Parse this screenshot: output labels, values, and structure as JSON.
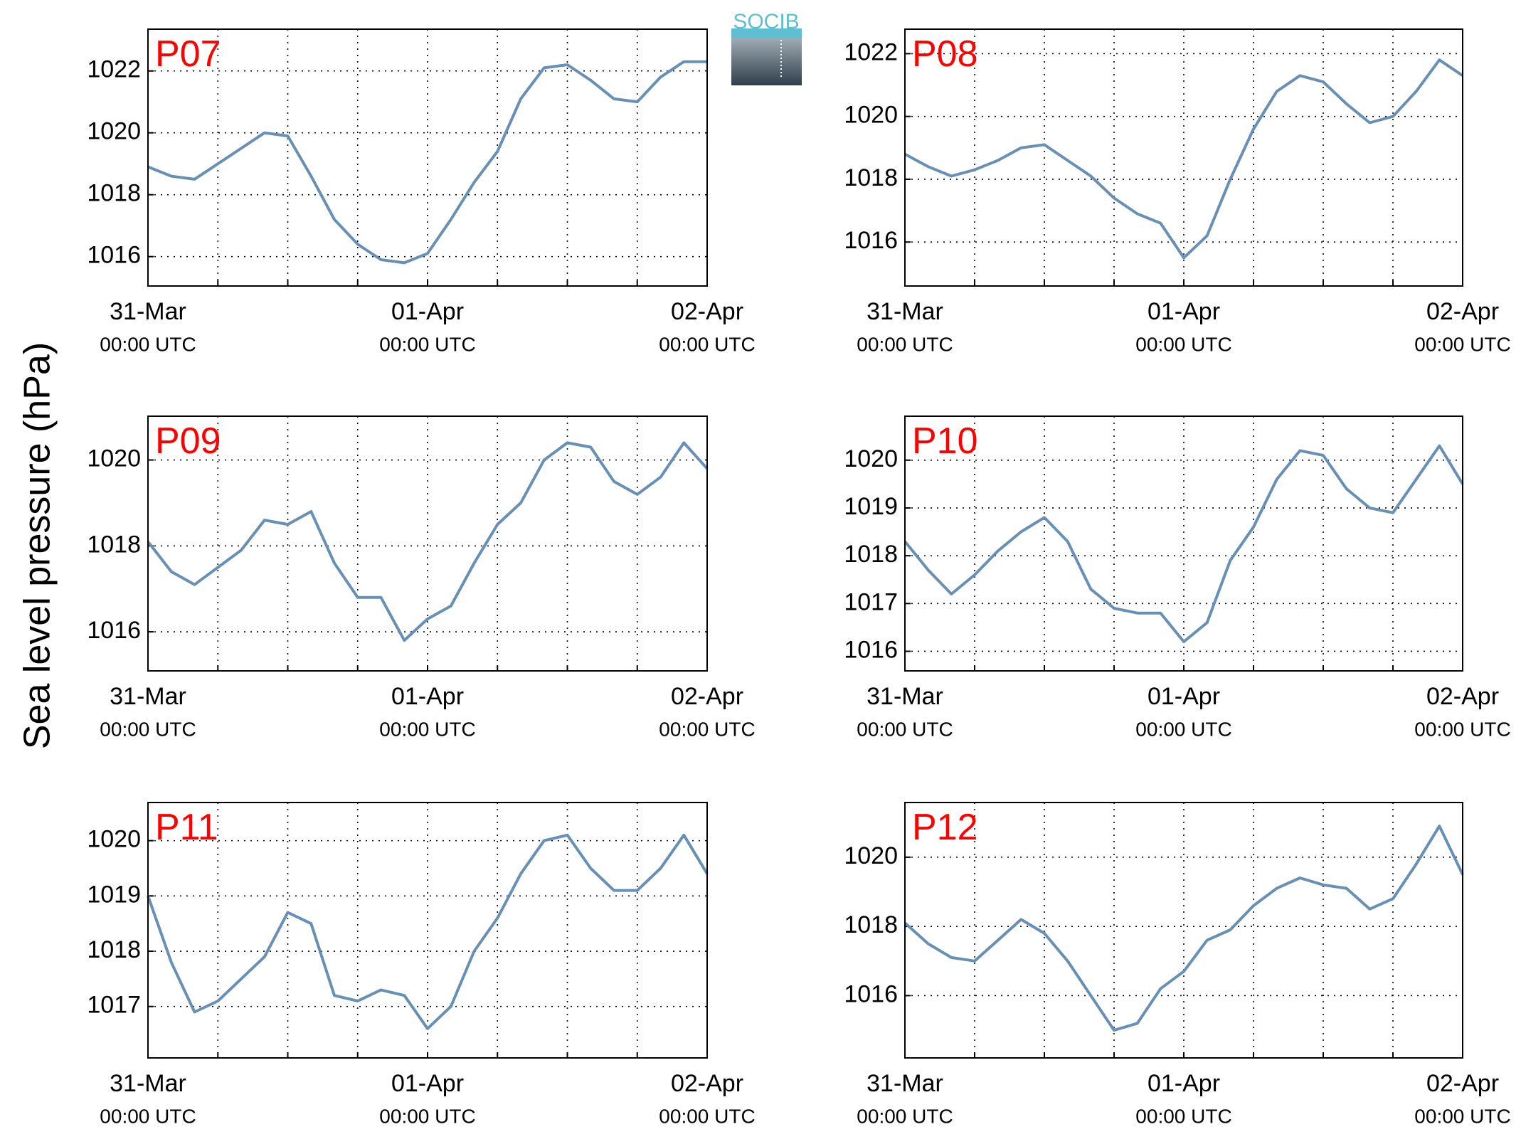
{
  "ylabel": "Sea level pressure (hPa)",
  "logo": "SOCIB",
  "chart_data": [
    {
      "type": "line",
      "title": "P07",
      "color": "#6890b5",
      "grid": true,
      "x": [
        0,
        2,
        4,
        6,
        8,
        10,
        12,
        14,
        16,
        18,
        20,
        22,
        24,
        26,
        28,
        30,
        32,
        34,
        36,
        38,
        40,
        42,
        44,
        46,
        48
      ],
      "values": [
        1018.9,
        1018.6,
        1018.5,
        1019.0,
        1019.5,
        1020.0,
        1019.9,
        1018.6,
        1017.2,
        1016.4,
        1015.9,
        1015.8,
        1016.1,
        1017.2,
        1018.4,
        1019.4,
        1021.1,
        1022.1,
        1022.2,
        1021.7,
        1021.1,
        1021.0,
        1021.8,
        1022.3,
        1022.3
      ],
      "xlim": [
        0,
        48
      ],
      "ylim": [
        1015.05,
        1023.35
      ],
      "yticks": [
        1016,
        1018,
        1020,
        1022
      ],
      "xticks": [
        {
          "value": 0,
          "label": [
            "31-Mar",
            "00:00 UTC"
          ]
        },
        {
          "value": 6,
          "label": null
        },
        {
          "value": 12,
          "label": null
        },
        {
          "value": 18,
          "label": null
        },
        {
          "value": 24,
          "label": [
            "01-Apr",
            "00:00 UTC"
          ]
        },
        {
          "value": 30,
          "label": null
        },
        {
          "value": 36,
          "label": null
        },
        {
          "value": 42,
          "label": null
        },
        {
          "value": 48,
          "label": [
            "02-Apr",
            "00:00 UTC"
          ]
        }
      ]
    },
    {
      "type": "line",
      "title": "P08",
      "color": "#6890b5",
      "grid": true,
      "x": [
        0,
        2,
        4,
        6,
        8,
        10,
        12,
        14,
        16,
        18,
        20,
        22,
        24,
        26,
        28,
        30,
        32,
        34,
        36,
        38,
        40,
        42,
        44,
        46,
        48
      ],
      "values": [
        1018.8,
        1018.4,
        1018.1,
        1018.3,
        1018.6,
        1019.0,
        1019.1,
        1018.6,
        1018.1,
        1017.4,
        1016.9,
        1016.6,
        1015.5,
        1016.2,
        1018.0,
        1019.6,
        1020.8,
        1021.3,
        1021.1,
        1020.4,
        1019.8,
        1020.0,
        1020.8,
        1021.8,
        1021.3
      ],
      "xlim": [
        0,
        48
      ],
      "ylim": [
        1014.6,
        1022.78
      ],
      "yticks": [
        1016,
        1018,
        1020,
        1022
      ],
      "xticks": [
        {
          "value": 0,
          "label": [
            "31-Mar",
            "00:00 UTC"
          ]
        },
        {
          "value": 6,
          "label": null
        },
        {
          "value": 12,
          "label": null
        },
        {
          "value": 18,
          "label": null
        },
        {
          "value": 24,
          "label": [
            "01-Apr",
            "00:00 UTC"
          ]
        },
        {
          "value": 30,
          "label": null
        },
        {
          "value": 36,
          "label": null
        },
        {
          "value": 42,
          "label": null
        },
        {
          "value": 48,
          "label": [
            "02-Apr",
            "00:00 UTC"
          ]
        }
      ]
    },
    {
      "type": "line",
      "title": "P09",
      "color": "#6890b5",
      "grid": true,
      "x": [
        0,
        2,
        4,
        6,
        8,
        10,
        12,
        14,
        16,
        18,
        20,
        22,
        24,
        26,
        28,
        30,
        32,
        34,
        36,
        38,
        40,
        42,
        44,
        46,
        48
      ],
      "values": [
        1018.1,
        1017.4,
        1017.1,
        1017.5,
        1017.9,
        1018.6,
        1018.5,
        1018.8,
        1017.6,
        1016.8,
        1016.8,
        1015.8,
        1016.3,
        1016.6,
        1017.6,
        1018.5,
        1019.0,
        1020.0,
        1020.4,
        1020.3,
        1019.5,
        1019.2,
        1019.6,
        1020.4,
        1019.8
      ],
      "xlim": [
        0,
        48
      ],
      "ylim": [
        1015.09,
        1021.02
      ],
      "yticks": [
        1016,
        1018,
        1020
      ],
      "xticks": [
        {
          "value": 0,
          "label": [
            "31-Mar",
            "00:00 UTC"
          ]
        },
        {
          "value": 6,
          "label": null
        },
        {
          "value": 12,
          "label": null
        },
        {
          "value": 18,
          "label": null
        },
        {
          "value": 24,
          "label": [
            "01-Apr",
            "00:00 UTC"
          ]
        },
        {
          "value": 30,
          "label": null
        },
        {
          "value": 36,
          "label": null
        },
        {
          "value": 42,
          "label": null
        },
        {
          "value": 48,
          "label": [
            "02-Apr",
            "00:00 UTC"
          ]
        }
      ]
    },
    {
      "type": "line",
      "title": "P10",
      "color": "#6890b5",
      "grid": true,
      "x": [
        0,
        2,
        4,
        6,
        8,
        10,
        12,
        14,
        16,
        18,
        20,
        22,
        24,
        26,
        28,
        30,
        32,
        34,
        36,
        38,
        40,
        42,
        44,
        46,
        48
      ],
      "values": [
        1018.3,
        1017.7,
        1017.2,
        1017.6,
        1018.1,
        1018.5,
        1018.8,
        1018.3,
        1017.3,
        1016.9,
        1016.8,
        1016.8,
        1016.2,
        1016.6,
        1017.9,
        1018.6,
        1019.6,
        1020.2,
        1020.1,
        1019.4,
        1019.0,
        1018.9,
        1019.6,
        1020.3,
        1019.5
      ],
      "xlim": [
        0,
        48
      ],
      "ylim": [
        1015.59,
        1020.92
      ],
      "yticks": [
        1016,
        1017,
        1018,
        1019,
        1020
      ],
      "xticks": [
        {
          "value": 0,
          "label": [
            "31-Mar",
            "00:00 UTC"
          ]
        },
        {
          "value": 6,
          "label": null
        },
        {
          "value": 12,
          "label": null
        },
        {
          "value": 18,
          "label": null
        },
        {
          "value": 24,
          "label": [
            "01-Apr",
            "00:00 UTC"
          ]
        },
        {
          "value": 30,
          "label": null
        },
        {
          "value": 36,
          "label": null
        },
        {
          "value": 42,
          "label": null
        },
        {
          "value": 48,
          "label": [
            "02-Apr",
            "00:00 UTC"
          ]
        }
      ]
    },
    {
      "type": "line",
      "title": "P11",
      "color": "#6890b5",
      "grid": true,
      "x": [
        0,
        2,
        4,
        6,
        8,
        10,
        12,
        14,
        16,
        18,
        20,
        22,
        24,
        26,
        28,
        30,
        32,
        34,
        36,
        38,
        40,
        42,
        44,
        46,
        48
      ],
      "values": [
        1019.0,
        1017.8,
        1016.9,
        1017.1,
        1017.5,
        1017.9,
        1018.7,
        1018.5,
        1017.2,
        1017.1,
        1017.3,
        1017.2,
        1016.6,
        1017.0,
        1018.0,
        1018.6,
        1019.4,
        1020.0,
        1020.1,
        1019.5,
        1019.1,
        1019.1,
        1019.5,
        1020.1,
        1019.4
      ],
      "xlim": [
        0,
        48
      ],
      "ylim": [
        1016.07,
        1020.69
      ],
      "yticks": [
        1017,
        1018,
        1019,
        1020
      ],
      "xticks": [
        {
          "value": 0,
          "label": [
            "31-Mar",
            "00:00 UTC"
          ]
        },
        {
          "value": 6,
          "label": null
        },
        {
          "value": 12,
          "label": null
        },
        {
          "value": 18,
          "label": null
        },
        {
          "value": 24,
          "label": [
            "01-Apr",
            "00:00 UTC"
          ]
        },
        {
          "value": 30,
          "label": null
        },
        {
          "value": 36,
          "label": null
        },
        {
          "value": 42,
          "label": null
        },
        {
          "value": 48,
          "label": [
            "02-Apr",
            "00:00 UTC"
          ]
        }
      ]
    },
    {
      "type": "line",
      "title": "P12",
      "color": "#6890b5",
      "grid": true,
      "x": [
        0,
        2,
        4,
        6,
        8,
        10,
        12,
        14,
        16,
        18,
        20,
        22,
        24,
        26,
        28,
        30,
        32,
        34,
        36,
        38,
        40,
        42,
        44,
        46,
        48
      ],
      "values": [
        1018.1,
        1017.5,
        1017.1,
        1017.0,
        1017.6,
        1018.2,
        1017.8,
        1017.0,
        1016.0,
        1015.0,
        1015.2,
        1016.2,
        1016.7,
        1017.6,
        1017.9,
        1018.6,
        1019.1,
        1019.4,
        1019.2,
        1019.1,
        1018.5,
        1018.8,
        1019.8,
        1020.9,
        1019.5
      ],
      "xlim": [
        0,
        48
      ],
      "ylim": [
        1014.2,
        1021.58
      ],
      "yticks": [
        1016,
        1018,
        1020
      ],
      "xticks": [
        {
          "value": 0,
          "label": [
            "31-Mar",
            "00:00 UTC"
          ]
        },
        {
          "value": 6,
          "label": null
        },
        {
          "value": 12,
          "label": null
        },
        {
          "value": 18,
          "label": null
        },
        {
          "value": 24,
          "label": [
            "01-Apr",
            "00:00 UTC"
          ]
        },
        {
          "value": 30,
          "label": null
        },
        {
          "value": 36,
          "label": null
        },
        {
          "value": 42,
          "label": null
        },
        {
          "value": 48,
          "label": [
            "02-Apr",
            "00:00 UTC"
          ]
        }
      ]
    }
  ]
}
